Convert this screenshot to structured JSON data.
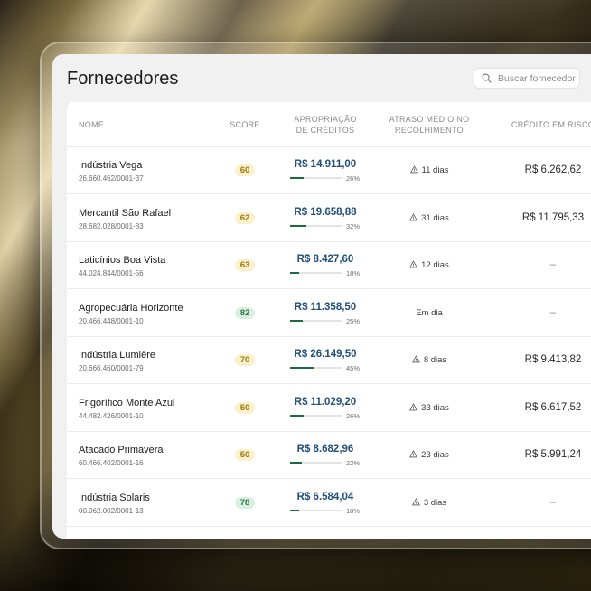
{
  "page": {
    "title": "Fornecedores",
    "search_placeholder": "Buscar fornecedor"
  },
  "table": {
    "headers": {
      "nome": "NOME",
      "score": "SCORE",
      "apropriacao_1": "APROPRIAÇÃO",
      "apropriacao_2": "DE CRÉDITOS",
      "atraso_1": "ATRASO MÉDIO NO",
      "atraso_2": "RECOLHIMENTO",
      "credito": "CRÉDITO EM RISCO"
    },
    "rows": [
      {
        "name": "Indústria Vega",
        "cnpj": "26.660.462/0001-37",
        "score": "60",
        "score_tone": "yellow",
        "amount": "R$ 14.911,00",
        "progress": 26,
        "progress_label": "26%",
        "delay": "11 dias",
        "delay_warning": true,
        "risk": "R$ 6.262,62"
      },
      {
        "name": "Mercantil São Rafael",
        "cnpj": "28.682.028/0001-83",
        "score": "62",
        "score_tone": "yellow",
        "amount": "R$ 19.658,88",
        "progress": 32,
        "progress_label": "32%",
        "delay": "31 dias",
        "delay_warning": true,
        "risk": "R$ 11.795,33"
      },
      {
        "name": "Laticínios Boa Vista",
        "cnpj": "44.024.844/0001-56",
        "score": "63",
        "score_tone": "yellow",
        "amount": "R$ 8.427,60",
        "progress": 18,
        "progress_label": "18%",
        "delay": "12 dias",
        "delay_warning": true,
        "risk": "–"
      },
      {
        "name": "Agropecuária Horizonte",
        "cnpj": "20.466.448/0001-10",
        "score": "82",
        "score_tone": "green",
        "amount": "R$ 11.358,50",
        "progress": 25,
        "progress_label": "25%",
        "delay": "Em dia",
        "delay_warning": false,
        "risk": "–"
      },
      {
        "name": "Indústria Lumière",
        "cnpj": "20.666.460/0001-79",
        "score": "70",
        "score_tone": "yellow",
        "amount": "R$ 26.149,50",
        "progress": 45,
        "progress_label": "45%",
        "delay": "8 dias",
        "delay_warning": true,
        "risk": "R$ 9.413,82"
      },
      {
        "name": "Frigorífico Monte Azul",
        "cnpj": "44.482.426/0001-10",
        "score": "50",
        "score_tone": "yellow",
        "amount": "R$ 11.029,20",
        "progress": 26,
        "progress_label": "26%",
        "delay": "33 dias",
        "delay_warning": true,
        "risk": "R$ 6.617,52"
      },
      {
        "name": "Atacado Primavera",
        "cnpj": "60.466.402/0001-16",
        "score": "50",
        "score_tone": "yellow",
        "amount": "R$ 8.682,96",
        "progress": 22,
        "progress_label": "22%",
        "delay": "23 dias",
        "delay_warning": true,
        "risk": "R$ 5.991,24"
      },
      {
        "name": "Indústria Solaris",
        "cnpj": "00.062.002/0001-13",
        "score": "78",
        "score_tone": "green",
        "amount": "R$ 6.584,04",
        "progress": 18,
        "progress_label": "18%",
        "delay": "3 dias",
        "delay_warning": true,
        "risk": "–"
      }
    ]
  }
}
